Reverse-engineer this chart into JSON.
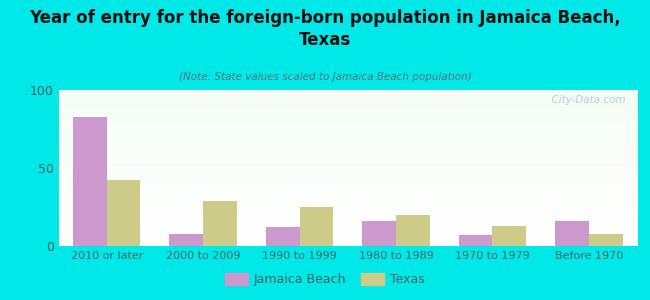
{
  "title": "Year of entry for the foreign-born population in Jamaica Beach,\nTexas",
  "subtitle": "(Note: State values scaled to Jamaica Beach population)",
  "categories": [
    "2010 or later",
    "2000 to 2009",
    "1990 to 1999",
    "1980 to 1989",
    "1970 to 1979",
    "Before 1970"
  ],
  "jamaica_beach": [
    83,
    8,
    12,
    16,
    7,
    16
  ],
  "texas": [
    42,
    29,
    25,
    20,
    13,
    8
  ],
  "jamaica_beach_color": "#cc99cc",
  "texas_color": "#cccc88",
  "background_outer": "#00e8e8",
  "ylim": [
    0,
    100
  ],
  "yticks": [
    0,
    50,
    100
  ],
  "bar_width": 0.35,
  "legend_labels": [
    "Jamaica Beach",
    "Texas"
  ],
  "watermark": "  City-Data.com"
}
